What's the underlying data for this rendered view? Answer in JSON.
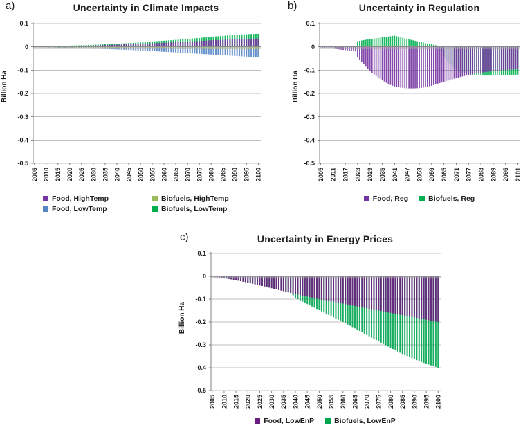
{
  "figure": {
    "background": "#FFFFFF"
  },
  "chart_data": [
    {
      "type": "bar",
      "panel_label": "a)",
      "title": "Uncertainty in Climate Impacts",
      "ylabel": "Billion Ha",
      "ylim": [
        -0.5,
        0.1
      ],
      "yticks": [
        "0.1",
        "0",
        "-0.1",
        "-0.2",
        "-0.3",
        "-0.4",
        "-0.5"
      ],
      "x_start": 2005,
      "x_end": 2100,
      "x_label_step": 5,
      "grid": true,
      "legend_position": "bottom",
      "legend_layout": "grid2",
      "series": [
        {
          "name": "Biofuels, LowTemp",
          "color": "#00B050",
          "anchors": [
            [
              2005,
              0.001
            ],
            [
              2010,
              0.002
            ],
            [
              2015,
              0.004
            ],
            [
              2020,
              0.005
            ],
            [
              2025,
              0.007
            ],
            [
              2030,
              0.009
            ],
            [
              2035,
              0.011
            ],
            [
              2040,
              0.013
            ],
            [
              2045,
              0.016
            ],
            [
              2050,
              0.019
            ],
            [
              2055,
              0.023
            ],
            [
              2060,
              0.026
            ],
            [
              2065,
              0.03
            ],
            [
              2070,
              0.034
            ],
            [
              2075,
              0.038
            ],
            [
              2080,
              0.043
            ],
            [
              2085,
              0.047
            ],
            [
              2090,
              0.051
            ],
            [
              2095,
              0.054
            ],
            [
              2100,
              0.056
            ]
          ]
        },
        {
          "name": "Food, HighTemp",
          "color": "#7635A2",
          "anchors": [
            [
              2005,
              0.001
            ],
            [
              2010,
              0.002
            ],
            [
              2015,
              0.003
            ],
            [
              2020,
              0.004
            ],
            [
              2025,
              0.005
            ],
            [
              2030,
              0.006
            ],
            [
              2035,
              0.008
            ],
            [
              2040,
              0.009
            ],
            [
              2045,
              0.011
            ],
            [
              2050,
              0.013
            ],
            [
              2055,
              0.015
            ],
            [
              2060,
              0.017
            ],
            [
              2065,
              0.02
            ],
            [
              2070,
              0.022
            ],
            [
              2075,
              0.025
            ],
            [
              2080,
              0.028
            ],
            [
              2085,
              0.03
            ],
            [
              2090,
              0.032
            ],
            [
              2095,
              0.034
            ],
            [
              2100,
              0.036
            ]
          ]
        },
        {
          "name": "Food, LowTemp",
          "color": "#5585C5",
          "anchors": [
            [
              2005,
              -0.002
            ],
            [
              2010,
              -0.003
            ],
            [
              2015,
              -0.004
            ],
            [
              2020,
              -0.005
            ],
            [
              2025,
              -0.006
            ],
            [
              2030,
              -0.008
            ],
            [
              2035,
              -0.009
            ],
            [
              2040,
              -0.011
            ],
            [
              2045,
              -0.013
            ],
            [
              2050,
              -0.016
            ],
            [
              2055,
              -0.018
            ],
            [
              2060,
              -0.021
            ],
            [
              2065,
              -0.024
            ],
            [
              2070,
              -0.027
            ],
            [
              2075,
              -0.03
            ],
            [
              2080,
              -0.033
            ],
            [
              2085,
              -0.036
            ],
            [
              2090,
              -0.039
            ],
            [
              2095,
              -0.042
            ],
            [
              2100,
              -0.045
            ]
          ]
        },
        {
          "name": "Biofuels, HighTemp",
          "color": "#9BBB59",
          "anchors": [
            [
              2005,
              -0.001
            ],
            [
              2010,
              -0.002
            ],
            [
              2015,
              -0.002
            ],
            [
              2020,
              -0.003
            ],
            [
              2025,
              -0.003
            ],
            [
              2030,
              -0.004
            ],
            [
              2035,
              -0.004
            ],
            [
              2040,
              -0.005
            ],
            [
              2045,
              -0.005
            ],
            [
              2050,
              -0.006
            ],
            [
              2055,
              -0.006
            ],
            [
              2060,
              -0.007
            ],
            [
              2065,
              -0.007
            ],
            [
              2070,
              -0.008
            ],
            [
              2075,
              -0.008
            ],
            [
              2080,
              -0.009
            ],
            [
              2085,
              -0.009
            ],
            [
              2090,
              -0.01
            ],
            [
              2095,
              -0.01
            ],
            [
              2100,
              -0.01
            ]
          ]
        }
      ],
      "legend": [
        {
          "label": "Food, HighTemp",
          "color": "#7635A2"
        },
        {
          "label": "Biofuels, HighTemp",
          "color": "#9BBB59"
        },
        {
          "label": "Food, LowTemp",
          "color": "#5585C5"
        },
        {
          "label": "Biofuels, LowTemp",
          "color": "#00B050"
        }
      ]
    },
    {
      "type": "bar",
      "panel_label": "b)",
      "title": "Uncertainty in Regulation",
      "ylabel": "Billion Ha",
      "ylim": [
        -0.5,
        0.1
      ],
      "yticks": [
        "0.1",
        "0",
        "-0.1",
        "-0.2",
        "-0.3",
        "-0.4",
        "-0.5"
      ],
      "x_start": 2005,
      "x_end": 2101,
      "x_label_step": 6,
      "grid": true,
      "legend_position": "bottom",
      "legend_layout": "row",
      "series": [
        {
          "name": "Biofuels, Reg",
          "color": "#00B050",
          "anchors": [
            [
              2005,
              -0.001
            ],
            [
              2011,
              -0.002
            ],
            [
              2017,
              -0.003
            ],
            [
              2022,
              -0.004
            ],
            [
              2023,
              0.024
            ],
            [
              2026,
              0.029
            ],
            [
              2029,
              0.033
            ],
            [
              2032,
              0.037
            ],
            [
              2035,
              0.041
            ],
            [
              2038,
              0.044
            ],
            [
              2041,
              0.048
            ],
            [
              2044,
              0.041
            ],
            [
              2047,
              0.034
            ],
            [
              2050,
              0.028
            ],
            [
              2053,
              0.022
            ],
            [
              2056,
              0.016
            ],
            [
              2059,
              0.011
            ],
            [
              2062,
              0.005
            ],
            [
              2063,
              0.0
            ],
            [
              2065,
              -0.04
            ],
            [
              2068,
              -0.075
            ],
            [
              2071,
              -0.098
            ],
            [
              2074,
              -0.11
            ],
            [
              2077,
              -0.117
            ],
            [
              2080,
              -0.121
            ],
            [
              2083,
              -0.123
            ],
            [
              2086,
              -0.123
            ],
            [
              2089,
              -0.123
            ],
            [
              2092,
              -0.122
            ],
            [
              2095,
              -0.121
            ],
            [
              2098,
              -0.12
            ],
            [
              2101,
              -0.119
            ]
          ]
        },
        {
          "name": "Food, Reg",
          "color": "#7635A2",
          "anchors": [
            [
              2005,
              -0.002
            ],
            [
              2008,
              -0.004
            ],
            [
              2011,
              -0.007
            ],
            [
              2014,
              -0.011
            ],
            [
              2017,
              -0.014
            ],
            [
              2020,
              -0.017
            ],
            [
              2022,
              -0.02
            ],
            [
              2023,
              -0.045
            ],
            [
              2026,
              -0.075
            ],
            [
              2029,
              -0.105
            ],
            [
              2032,
              -0.125
            ],
            [
              2035,
              -0.143
            ],
            [
              2038,
              -0.16
            ],
            [
              2041,
              -0.17
            ],
            [
              2044,
              -0.175
            ],
            [
              2047,
              -0.178
            ],
            [
              2050,
              -0.178
            ],
            [
              2053,
              -0.177
            ],
            [
              2056,
              -0.173
            ],
            [
              2059,
              -0.167
            ],
            [
              2062,
              -0.158
            ],
            [
              2065,
              -0.15
            ],
            [
              2068,
              -0.142
            ],
            [
              2071,
              -0.134
            ],
            [
              2074,
              -0.127
            ],
            [
              2077,
              -0.121
            ],
            [
              2080,
              -0.116
            ],
            [
              2083,
              -0.111
            ],
            [
              2086,
              -0.107
            ],
            [
              2089,
              -0.104
            ],
            [
              2092,
              -0.101
            ],
            [
              2095,
              -0.099
            ],
            [
              2098,
              -0.097
            ],
            [
              2101,
              -0.096
            ]
          ]
        }
      ],
      "legend": [
        {
          "label": "Food, Reg",
          "color": "#7635A2"
        },
        {
          "label": "Biofuels, Reg",
          "color": "#00B050"
        }
      ]
    },
    {
      "type": "bar",
      "panel_label": "c)",
      "title": "Uncertainty in Energy Prices",
      "ylabel": "Billion Ha",
      "ylim": [
        -0.5,
        0.1
      ],
      "yticks": [
        "0.1",
        "0",
        "-0.1",
        "-0.2",
        "-0.3",
        "-0.4",
        "-0.5"
      ],
      "x_start": 2005,
      "x_end": 2100,
      "x_label_step": 5,
      "grid": true,
      "legend_position": "bottom",
      "legend_layout": "row",
      "series": [
        {
          "name": "Biofuels, LowEnP",
          "color": "#00A550",
          "anchors": [
            [
              2005,
              -0.002
            ],
            [
              2010,
              -0.008
            ],
            [
              2015,
              -0.017
            ],
            [
              2020,
              -0.028
            ],
            [
              2025,
              -0.04
            ],
            [
              2030,
              -0.052
            ],
            [
              2035,
              -0.065
            ],
            [
              2038,
              -0.073
            ],
            [
              2040,
              -0.095
            ],
            [
              2045,
              -0.122
            ],
            [
              2050,
              -0.148
            ],
            [
              2055,
              -0.174
            ],
            [
              2060,
              -0.2
            ],
            [
              2065,
              -0.228
            ],
            [
              2070,
              -0.257
            ],
            [
              2075,
              -0.285
            ],
            [
              2080,
              -0.313
            ],
            [
              2085,
              -0.34
            ],
            [
              2090,
              -0.363
            ],
            [
              2095,
              -0.383
            ],
            [
              2100,
              -0.4
            ]
          ]
        },
        {
          "name": "Food, LowEnP",
          "color": "#6B1D7F",
          "anchors": [
            [
              2005,
              -0.002
            ],
            [
              2010,
              -0.008
            ],
            [
              2015,
              -0.017
            ],
            [
              2020,
              -0.028
            ],
            [
              2025,
              -0.04
            ],
            [
              2030,
              -0.052
            ],
            [
              2035,
              -0.065
            ],
            [
              2040,
              -0.078
            ],
            [
              2045,
              -0.089
            ],
            [
              2050,
              -0.1
            ],
            [
              2055,
              -0.11
            ],
            [
              2060,
              -0.12
            ],
            [
              2065,
              -0.13
            ],
            [
              2070,
              -0.14
            ],
            [
              2075,
              -0.15
            ],
            [
              2080,
              -0.16
            ],
            [
              2085,
              -0.17
            ],
            [
              2090,
              -0.18
            ],
            [
              2095,
              -0.19
            ],
            [
              2100,
              -0.2
            ]
          ]
        }
      ],
      "legend": [
        {
          "label": "Food, LowEnP",
          "color": "#6B1D7F"
        },
        {
          "label": "Biofuels, LowEnP",
          "color": "#00A550"
        }
      ]
    }
  ]
}
